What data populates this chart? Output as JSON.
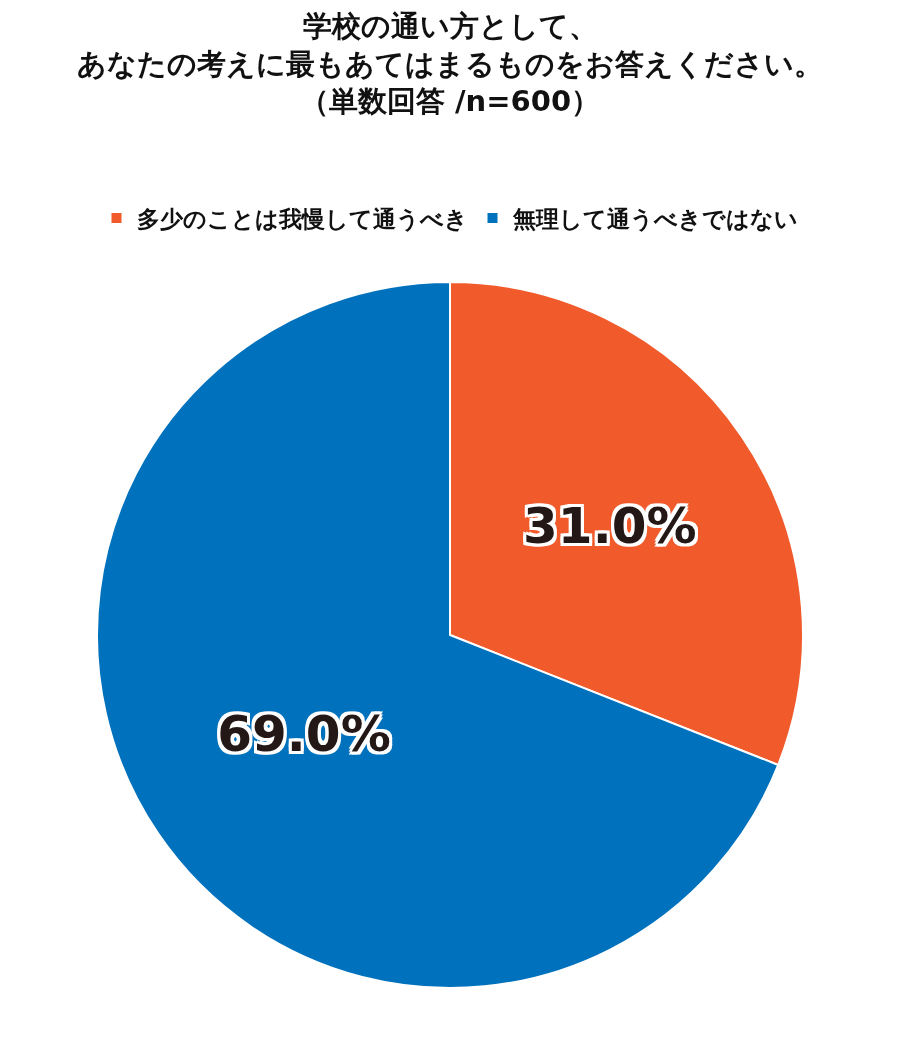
{
  "chart_data": {
    "type": "pie",
    "title": "学校の通い方として、あなたの考えに最もあてはまるものをお答えください。（単数回答 /n=600）",
    "categories": [
      "多少のことは我慢して通うべき",
      "無理して通うべきではない"
    ],
    "values": [
      31.0,
      69.0
    ],
    "colors": [
      "#f15a2b",
      "#0071bc"
    ],
    "value_labels": [
      "31.0%",
      "69.0%"
    ],
    "legend": "top"
  }
}
